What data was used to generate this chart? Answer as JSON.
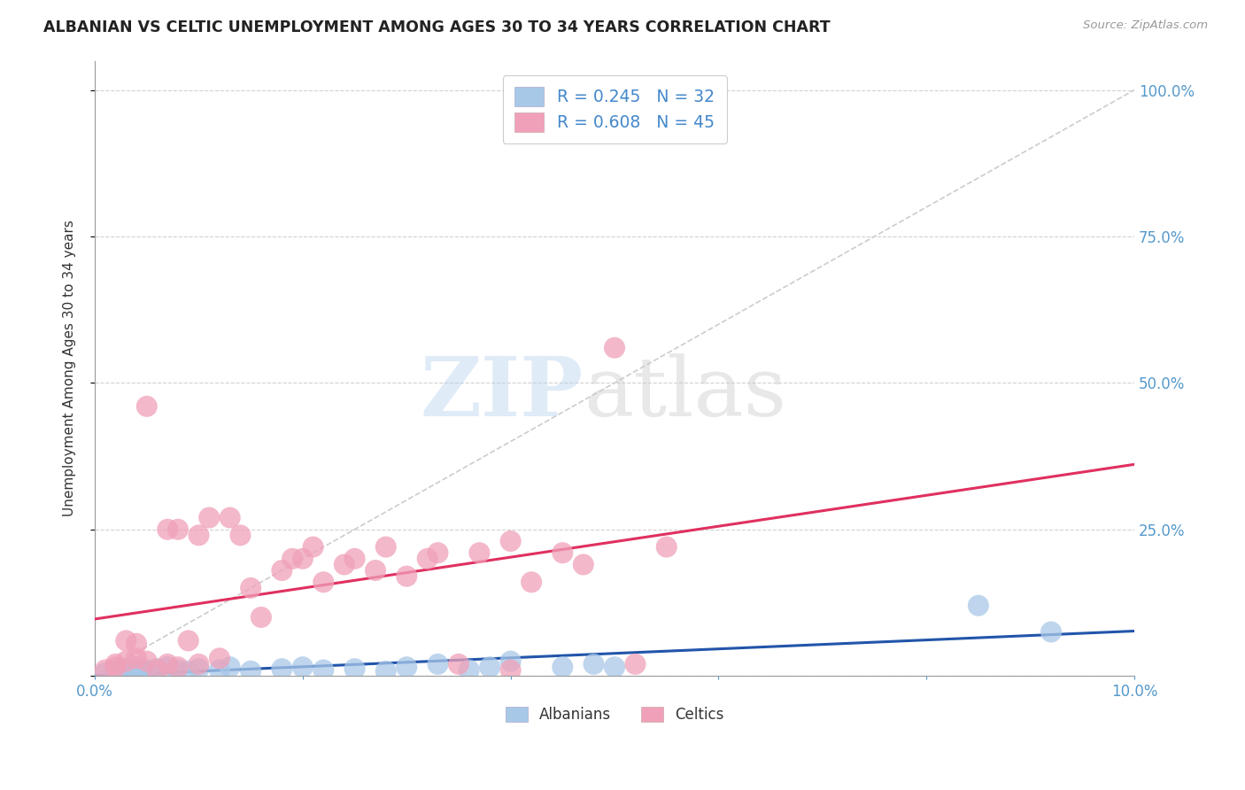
{
  "title": "ALBANIAN VS CELTIC UNEMPLOYMENT AMONG AGES 30 TO 34 YEARS CORRELATION CHART",
  "source": "Source: ZipAtlas.com",
  "ylabel": "Unemployment Among Ages 30 to 34 years",
  "xlim": [
    0.0,
    0.1
  ],
  "ylim": [
    0.0,
    1.05
  ],
  "albanian_R": 0.245,
  "albanian_N": 32,
  "celtic_R": 0.608,
  "celtic_N": 45,
  "albanian_color": "#a8c8e8",
  "albanian_line_color": "#2255aa",
  "celtic_color": "#f0a0b8",
  "celtic_line_color": "#e03060",
  "diagonal_color": "#cccccc",
  "albanian_x": [
    0.001,
    0.002,
    0.002,
    0.003,
    0.003,
    0.004,
    0.004,
    0.005,
    0.005,
    0.006,
    0.007,
    0.008,
    0.009,
    0.01,
    0.012,
    0.013,
    0.015,
    0.018,
    0.02,
    0.022,
    0.025,
    0.028,
    0.03,
    0.033,
    0.036,
    0.038,
    0.04,
    0.045,
    0.048,
    0.05,
    0.085,
    0.092
  ],
  "albanian_y": [
    0.005,
    0.008,
    0.01,
    0.006,
    0.012,
    0.008,
    0.015,
    0.01,
    0.007,
    0.012,
    0.015,
    0.01,
    0.008,
    0.012,
    0.01,
    0.015,
    0.008,
    0.012,
    0.015,
    0.01,
    0.012,
    0.008,
    0.015,
    0.02,
    0.01,
    0.015,
    0.025,
    0.015,
    0.02,
    0.015,
    0.12,
    0.075
  ],
  "celtic_x": [
    0.001,
    0.002,
    0.002,
    0.003,
    0.003,
    0.004,
    0.004,
    0.005,
    0.005,
    0.006,
    0.007,
    0.007,
    0.008,
    0.008,
    0.009,
    0.01,
    0.01,
    0.011,
    0.012,
    0.013,
    0.014,
    0.015,
    0.016,
    0.018,
    0.019,
    0.02,
    0.021,
    0.022,
    0.024,
    0.025,
    0.027,
    0.028,
    0.03,
    0.032,
    0.033,
    0.035,
    0.037,
    0.04,
    0.04,
    0.042,
    0.045,
    0.047,
    0.05,
    0.052,
    0.055
  ],
  "celtic_y": [
    0.01,
    0.015,
    0.02,
    0.025,
    0.06,
    0.03,
    0.055,
    0.025,
    0.46,
    0.01,
    0.02,
    0.25,
    0.015,
    0.25,
    0.06,
    0.02,
    0.24,
    0.27,
    0.03,
    0.27,
    0.24,
    0.15,
    0.1,
    0.18,
    0.2,
    0.2,
    0.22,
    0.16,
    0.19,
    0.2,
    0.18,
    0.22,
    0.17,
    0.2,
    0.21,
    0.02,
    0.21,
    0.23,
    0.01,
    0.16,
    0.21,
    0.19,
    0.56,
    0.02,
    0.22
  ],
  "watermark_zip": "ZIP",
  "watermark_atlas": "atlas"
}
